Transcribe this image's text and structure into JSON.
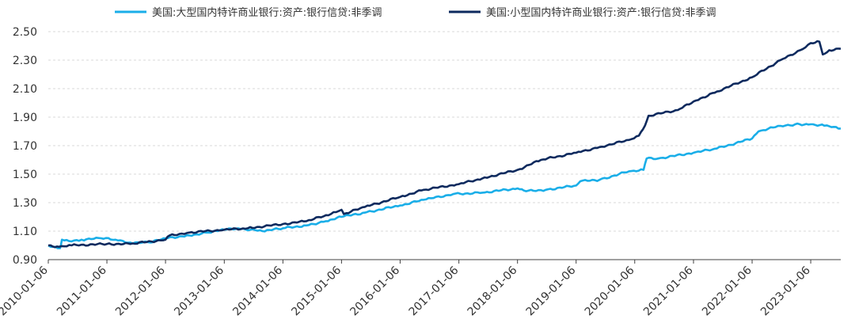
{
  "chart_data": {
    "type": "line",
    "title": "",
    "xlabel": "",
    "ylabel": "",
    "ylim": [
      0.9,
      2.5
    ],
    "yticks": [
      "2.50",
      "2.30",
      "2.10",
      "1.90",
      "1.70",
      "1.50",
      "1.30",
      "1.10",
      "0.90"
    ],
    "xticks": [
      "2010-01-06",
      "2011-01-06",
      "2012-01-06",
      "2013-01-06",
      "2014-01-06",
      "2015-01-06",
      "2016-01-06",
      "2017-01-06",
      "2018-01-06",
      "2019-01-06",
      "2020-01-06",
      "2021-01-06",
      "2022-01-06",
      "2023-01-06"
    ],
    "xlim": [
      "2010-01-06",
      "2023-07-12"
    ],
    "grid": "horizontal dashed",
    "legend_position": "top",
    "series": [
      {
        "name": "美国:大型国内特许商业银行:资产:银行信贷:非季调",
        "color": "#1aaee8",
        "points": [
          [
            "2010-01-06",
            1.0
          ],
          [
            "2010-03-20",
            0.98
          ],
          [
            "2010-04-01",
            1.04
          ],
          [
            "2010-05-15",
            1.03
          ],
          [
            "2010-08-01",
            1.04
          ],
          [
            "2010-12-01",
            1.05
          ],
          [
            "2011-03-01",
            1.04
          ],
          [
            "2011-06-01",
            1.02
          ],
          [
            "2011-10-01",
            1.02
          ],
          [
            "2012-01-06",
            1.05
          ],
          [
            "2012-06-01",
            1.07
          ],
          [
            "2012-10-01",
            1.09
          ],
          [
            "2013-01-06",
            1.11
          ],
          [
            "2013-04-01",
            1.12
          ],
          [
            "2013-09-01",
            1.1
          ],
          [
            "2014-01-06",
            1.12
          ],
          [
            "2014-06-01",
            1.14
          ],
          [
            "2014-10-01",
            1.17
          ],
          [
            "2015-01-06",
            1.2
          ],
          [
            "2015-06-01",
            1.23
          ],
          [
            "2016-01-06",
            1.28
          ],
          [
            "2016-06-01",
            1.32
          ],
          [
            "2016-12-01",
            1.36
          ],
          [
            "2017-06-01",
            1.37
          ],
          [
            "2018-01-06",
            1.4
          ],
          [
            "2018-03-01",
            1.38
          ],
          [
            "2018-07-01",
            1.39
          ],
          [
            "2019-01-06",
            1.42
          ],
          [
            "2019-02-01",
            1.45
          ],
          [
            "2019-06-01",
            1.46
          ],
          [
            "2019-12-01",
            1.52
          ],
          [
            "2020-03-01",
            1.53
          ],
          [
            "2020-03-20",
            1.61
          ],
          [
            "2020-06-01",
            1.61
          ],
          [
            "2021-01-06",
            1.65
          ],
          [
            "2021-06-01",
            1.68
          ],
          [
            "2022-01-06",
            1.75
          ],
          [
            "2022-02-15",
            1.8
          ],
          [
            "2022-06-01",
            1.83
          ],
          [
            "2022-10-01",
            1.85
          ],
          [
            "2023-01-06",
            1.85
          ],
          [
            "2023-04-01",
            1.84
          ],
          [
            "2023-07-12",
            1.82
          ]
        ]
      },
      {
        "name": "美国:小型国内特许商业银行:资产:银行信贷:非季调",
        "color": "#0d2a5e",
        "points": [
          [
            "2010-01-06",
            1.0
          ],
          [
            "2010-03-15",
            0.99
          ],
          [
            "2010-06-01",
            1.0
          ],
          [
            "2011-01-06",
            1.01
          ],
          [
            "2011-06-01",
            1.01
          ],
          [
            "2012-01-06",
            1.04
          ],
          [
            "2012-02-01",
            1.07
          ],
          [
            "2012-06-01",
            1.09
          ],
          [
            "2013-01-06",
            1.11
          ],
          [
            "2013-06-01",
            1.12
          ],
          [
            "2014-01-06",
            1.15
          ],
          [
            "2014-06-01",
            1.17
          ],
          [
            "2014-11-01",
            1.22
          ],
          [
            "2015-01-06",
            1.25
          ],
          [
            "2015-01-20",
            1.22
          ],
          [
            "2015-06-01",
            1.27
          ],
          [
            "2016-01-06",
            1.34
          ],
          [
            "2016-06-01",
            1.39
          ],
          [
            "2017-01-06",
            1.43
          ],
          [
            "2017-06-01",
            1.47
          ],
          [
            "2018-01-06",
            1.53
          ],
          [
            "2018-06-01",
            1.6
          ],
          [
            "2019-01-06",
            1.65
          ],
          [
            "2019-06-01",
            1.69
          ],
          [
            "2019-12-01",
            1.74
          ],
          [
            "2020-02-01",
            1.77
          ],
          [
            "2020-03-10",
            1.84
          ],
          [
            "2020-04-01",
            1.91
          ],
          [
            "2020-10-01",
            1.95
          ],
          [
            "2021-01-06",
            2.01
          ],
          [
            "2021-06-01",
            2.08
          ],
          [
            "2022-01-06",
            2.18
          ],
          [
            "2022-07-01",
            2.3
          ],
          [
            "2022-11-01",
            2.37
          ],
          [
            "2023-01-06",
            2.42
          ],
          [
            "2023-03-01",
            2.43
          ],
          [
            "2023-03-22",
            2.34
          ],
          [
            "2023-05-01",
            2.37
          ],
          [
            "2023-07-12",
            2.38
          ]
        ]
      }
    ]
  }
}
